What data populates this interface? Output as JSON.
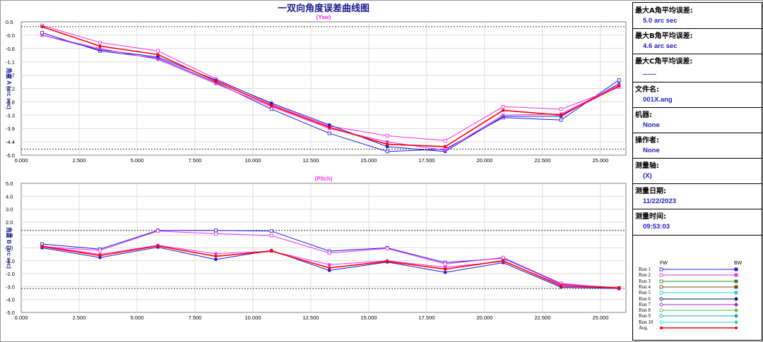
{
  "window_title": "一双向角度误差曲线图",
  "colors": {
    "axis_text": "#1a1aa0",
    "title": "#1a1a90",
    "subtitle": "#ee30ee",
    "grid": "#dcdcdc",
    "dashed": "#000000"
  },
  "chart_data": [
    {
      "type": "line",
      "title": "一双向角度误差曲线图",
      "subtitle": "(Yaw)",
      "ylabel": "角度 A (arc sec)",
      "xlim": [
        0,
        26.1
      ],
      "ylim": [
        -5.0,
        0.5
      ],
      "xticks": [
        "0.000",
        "2.500",
        "5.000",
        "7.500",
        "10.000",
        "12.500",
        "15.000",
        "17.500",
        "20.000",
        "22.500",
        "25.000"
      ],
      "yticks": [
        "0.5",
        "-0.0",
        "-0.6",
        "-1.1",
        "-1.7",
        "-2.2",
        "-2.8",
        "-3.3",
        "-3.9",
        "-4.4",
        "-5.0"
      ],
      "dashed_lines": [
        0.3,
        -4.75
      ],
      "x": [
        0.9,
        3.4,
        5.9,
        8.4,
        10.8,
        13.3,
        15.8,
        18.3,
        20.8,
        23.3,
        25.8
      ],
      "series": [
        {
          "name": "Run 1",
          "color": "#1a1adc",
          "values": [
            0.05,
            -0.7,
            -1.0,
            -2.0,
            -3.1,
            -4.1,
            -4.85,
            -4.75,
            -3.45,
            -3.55,
            -1.9
          ]
        },
        {
          "name": "Run 2",
          "color": "#ee30ee",
          "values": [
            0.35,
            -0.35,
            -0.7,
            -1.85,
            -2.9,
            -3.8,
            -4.2,
            -4.4,
            -3.0,
            -3.1,
            -2.2
          ]
        },
        {
          "name": "Run 1",
          "color": "#1a1adc",
          "values": [
            -0.05,
            -0.65,
            -0.95,
            -1.9,
            -2.85,
            -3.75,
            -4.65,
            -4.85,
            -3.4,
            -3.4,
            -2.05
          ]
        },
        {
          "name": "Run 2",
          "color": "#ee30ee",
          "values": [
            -0.05,
            -0.6,
            -1.05,
            -2.05,
            -3.0,
            -3.9,
            -4.45,
            -4.8,
            -3.35,
            -3.3,
            -2.1
          ]
        },
        {
          "name": "Avg.",
          "color": "#ff0000",
          "values": [
            0.3,
            -0.5,
            -0.85,
            -1.95,
            -2.95,
            -3.85,
            -4.55,
            -4.65,
            -3.15,
            -3.35,
            -2.15
          ]
        }
      ]
    },
    {
      "type": "line",
      "title": "",
      "subtitle": "(Pitch)",
      "ylabel": "角度 B (arc sec)",
      "xlim": [
        0,
        26.1
      ],
      "ylim": [
        -5.0,
        5.0
      ],
      "xticks": [
        "0.000",
        "2.500",
        "5.000",
        "7.500",
        "10.000",
        "12.500",
        "15.000",
        "17.500",
        "20.000",
        "22.500",
        "25.000"
      ],
      "yticks": [
        "5.0",
        "4.0",
        "3.0",
        "2.0",
        "1.0",
        "0.0",
        "-1.0",
        "-2.0",
        "-3.0",
        "-4.0",
        "-5.0"
      ],
      "dashed_lines": [
        1.35,
        -3.15
      ],
      "x": [
        0.9,
        3.4,
        5.9,
        8.4,
        10.8,
        13.3,
        15.8,
        18.3,
        20.8,
        23.3,
        25.8
      ],
      "series": [
        {
          "name": "Run 1",
          "color": "#1a1adc",
          "values": [
            0.3,
            -0.1,
            1.35,
            1.35,
            1.3,
            -0.25,
            0.0,
            -1.15,
            -0.8,
            -2.8,
            -3.1
          ]
        },
        {
          "name": "Run 2",
          "color": "#ee30ee",
          "values": [
            0.1,
            -0.2,
            1.3,
            1.1,
            0.95,
            -0.4,
            -0.05,
            -1.25,
            -0.75,
            -2.75,
            -3.15
          ]
        },
        {
          "name": "Run 1",
          "color": "#1a1adc",
          "values": [
            0.0,
            -0.75,
            0.05,
            -0.9,
            -0.2,
            -1.75,
            -1.1,
            -1.9,
            -1.15,
            -3.05,
            -3.15
          ]
        },
        {
          "name": "Run 2",
          "color": "#ee30ee",
          "values": [
            0.15,
            -0.5,
            0.2,
            -0.45,
            -0.25,
            -1.3,
            -1.0,
            -1.5,
            -1.05,
            -2.85,
            -3.1
          ]
        },
        {
          "name": "Avg.",
          "color": "#ff0000",
          "values": [
            0.1,
            -0.6,
            0.15,
            -0.65,
            -0.25,
            -1.55,
            -1.05,
            -1.65,
            -1.0,
            -2.95,
            -3.1
          ]
        }
      ]
    }
  ],
  "side": {
    "max_a_label": "最大A角平均误差:",
    "max_a_value": "5.0 arc sec",
    "max_b_label": "最大B角平均误差:",
    "max_b_value": "4.6 arc sec",
    "max_c_label": "最大C角平均误差:",
    "max_c_value": "------",
    "file_label": "文件名:",
    "file_value": "001X.ang",
    "machine_label": "机器:",
    "machine_value": "None",
    "operator_label": "操作者:",
    "operator_value": "None",
    "axis_label": "测量轴:",
    "axis_value": "(X)",
    "date_label": "测量日期:",
    "date_value": "11/22/2023",
    "time_label": "测量时间:",
    "time_value": "09:53:03"
  },
  "legend": {
    "fw": "FW",
    "bw": "BW",
    "rows": [
      {
        "name": "Run 1",
        "color": "#1a1adc",
        "marker": "square"
      },
      {
        "name": "Run 2",
        "color": "#ee30ee",
        "marker": "square"
      },
      {
        "name": "Run 3",
        "color": "#1a8a1a",
        "marker": "square"
      },
      {
        "name": "Run 4",
        "color": "#7a4010",
        "marker": "square"
      },
      {
        "name": "Run 5",
        "color": "#20d0d0",
        "marker": "square"
      },
      {
        "name": "Run 6",
        "color": "#101070",
        "marker": "diamond"
      },
      {
        "name": "Run 7",
        "color": "#a020c0",
        "marker": "diamond"
      },
      {
        "name": "Run 8",
        "color": "#40d040",
        "marker": "diamond"
      },
      {
        "name": "Run 9",
        "color": "#10a0a0",
        "marker": "diamond"
      },
      {
        "name": "Run 10",
        "color": "#20d0d0",
        "marker": "diamond"
      },
      {
        "name": "Avg.",
        "color": "#ff0000",
        "marker": "circle"
      }
    ]
  }
}
